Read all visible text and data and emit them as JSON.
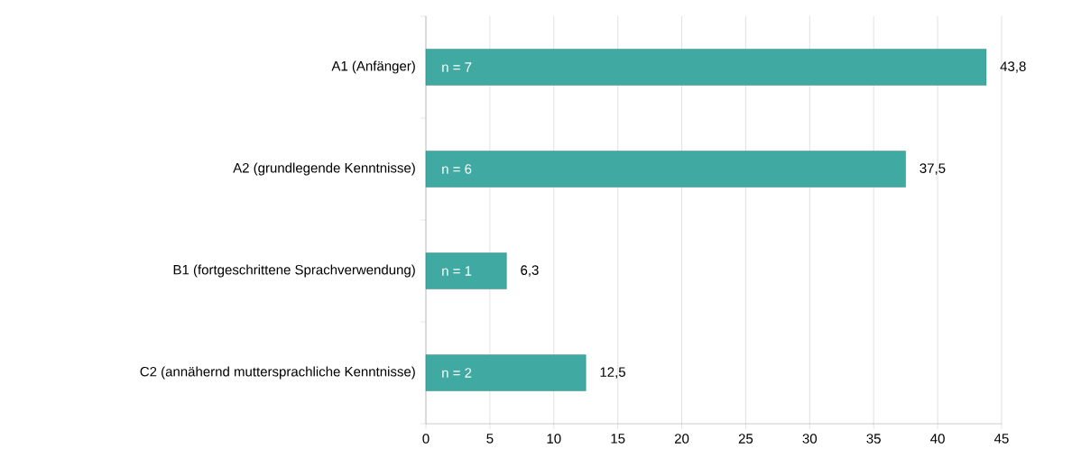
{
  "chart_data": {
    "type": "bar",
    "orientation": "horizontal",
    "categories": [
      "A1 (Anfänger)",
      "A2 (grundlegende Kenntnisse)",
      "B1 (fortgeschrittene Sprachverwendung)",
      "C2 (annähernd muttersprachliche Kenntnisse)"
    ],
    "values": [
      43.8,
      37.5,
      6.3,
      12.5
    ],
    "value_labels": [
      "43,8",
      "37,5",
      "6,3",
      "12,5"
    ],
    "color": "#3fa9a2",
    "xlim": [
      0,
      45
    ],
    "xticks": [
      0,
      5,
      10,
      15,
      20,
      25,
      30,
      35,
      40,
      45
    ],
    "grid": "x",
    "annotations": [
      "n = 7",
      "n = 6",
      "n = 1",
      "n = 2"
    ]
  }
}
